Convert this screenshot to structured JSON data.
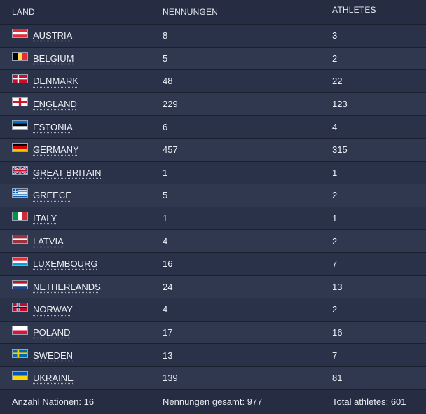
{
  "headers": {
    "land": "LAND",
    "nennungen": "NENNUNGEN",
    "athletes": "ATHLETES"
  },
  "rows": [
    {
      "country": "AUSTRIA",
      "flag": "flag-austria-icon",
      "nennungen": "8",
      "athletes": "3"
    },
    {
      "country": "BELGIUM",
      "flag": "flag-belgium-icon",
      "nennungen": "5",
      "athletes": "2"
    },
    {
      "country": "DENMARK",
      "flag": "flag-denmark-icon",
      "nennungen": "48",
      "athletes": "22"
    },
    {
      "country": "ENGLAND",
      "flag": "flag-england-icon",
      "nennungen": "229",
      "athletes": "123"
    },
    {
      "country": "ESTONIA",
      "flag": "flag-estonia-icon",
      "nennungen": "6",
      "athletes": "4"
    },
    {
      "country": "GERMANY",
      "flag": "flag-germany-icon",
      "nennungen": "457",
      "athletes": "315"
    },
    {
      "country": "GREAT BRITAIN",
      "flag": "flag-great-britain-icon",
      "nennungen": "1",
      "athletes": "1"
    },
    {
      "country": "GREECE",
      "flag": "flag-greece-icon",
      "nennungen": "5",
      "athletes": "2"
    },
    {
      "country": "ITALY",
      "flag": "flag-italy-icon",
      "nennungen": "1",
      "athletes": "1"
    },
    {
      "country": "LATVIA",
      "flag": "flag-latvia-icon",
      "nennungen": "4",
      "athletes": "2"
    },
    {
      "country": "LUXEMBOURG",
      "flag": "flag-luxembourg-icon",
      "nennungen": "16",
      "athletes": "7"
    },
    {
      "country": "NETHERLANDS",
      "flag": "flag-netherlands-icon",
      "nennungen": "24",
      "athletes": "13"
    },
    {
      "country": "NORWAY",
      "flag": "flag-norway-icon",
      "nennungen": "4",
      "athletes": "2"
    },
    {
      "country": "POLAND",
      "flag": "flag-poland-icon",
      "nennungen": "17",
      "athletes": "16"
    },
    {
      "country": "SWEDEN",
      "flag": "flag-sweden-icon",
      "nennungen": "13",
      "athletes": "7"
    },
    {
      "country": "UKRAINE",
      "flag": "flag-ukraine-icon",
      "nennungen": "139",
      "athletes": "81"
    }
  ],
  "footer": {
    "nations": "Anzahl Nationen: 16",
    "nennungen": "Nennungen gesamt: 977",
    "athletes": "Total athletes: 601"
  }
}
